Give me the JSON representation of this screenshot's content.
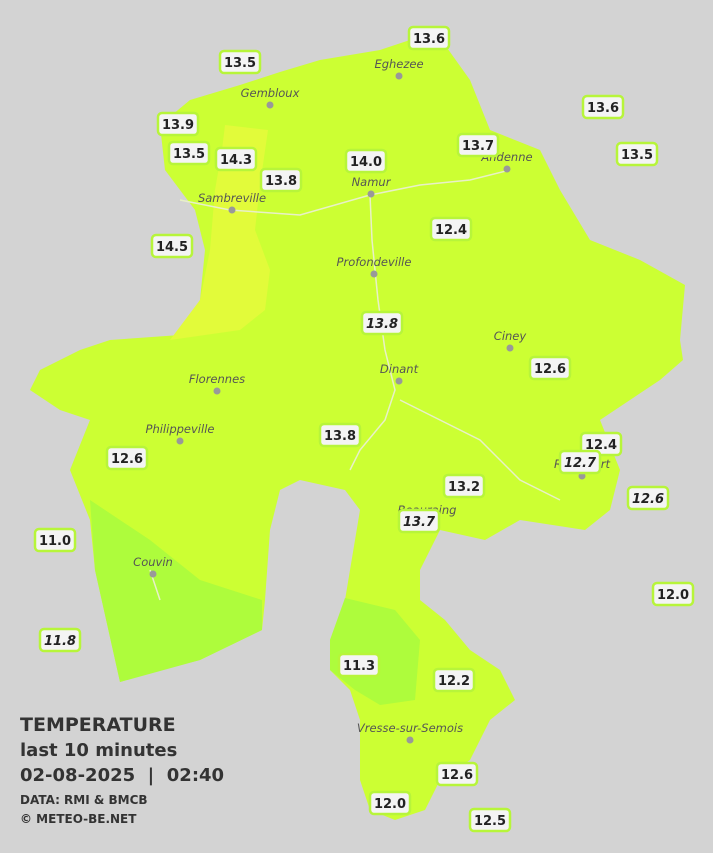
{
  "legend": {
    "title": "TEMPERATURE",
    "subtitle": "last 10 minutes",
    "datetime": "02-08-2025  |  02:40",
    "source": "DATA: RMI & BMCB",
    "credit": "© METEO-BE.NET"
  },
  "towns": [
    "Eghezee",
    "Gembloux",
    "Andenne",
    "Namur",
    "Sambreville",
    "Profondeville",
    "Ciney",
    "Dinant",
    "Florennes",
    "Philippeville",
    "Rochefort",
    "Beauraing",
    "Couvin",
    "Vresse-sur-Semois"
  ],
  "stations": [
    "13.6",
    "13.5",
    "13.9",
    "13.5",
    "14.3",
    "13.8",
    "14.0",
    "13.7",
    "13.6",
    "13.5",
    "12.4",
    "14.5",
    "13.8",
    "12.6",
    "13.8",
    "12.6",
    "12.4",
    "12.7",
    "13.2",
    "12.6",
    "13.7",
    "11.0",
    "12.0",
    "11.8",
    "11.3",
    "12.2",
    "12.6",
    "12.0",
    "12.5"
  ]
}
